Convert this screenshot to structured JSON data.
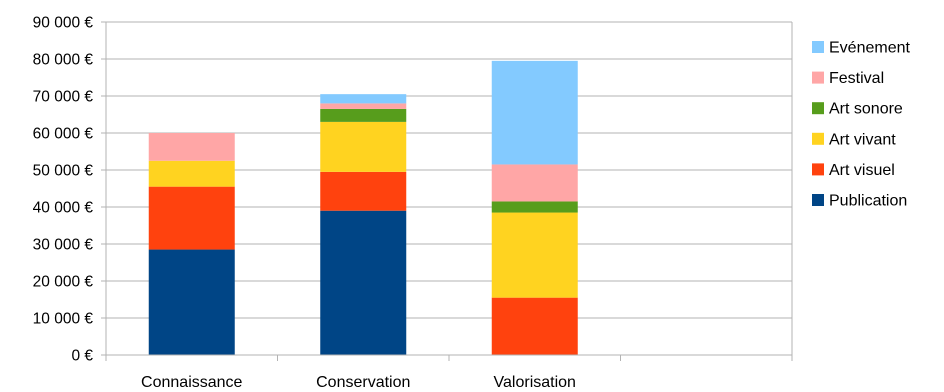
{
  "chart_data": {
    "type": "bar",
    "stacked": true,
    "title": "",
    "xlabel": "",
    "ylabel": "",
    "ylim": [
      0,
      90000
    ],
    "yticks": [
      "0 €",
      "10 000 €",
      "20 000 €",
      "30 000 €",
      "40 000 €",
      "50 000 €",
      "60 000 €",
      "70 000 €",
      "80 000 €",
      "90 000 €"
    ],
    "grid": true,
    "legend_position": "right",
    "categories": [
      "Connaissance",
      "Conservation",
      "Valorisation",
      ""
    ],
    "series": [
      {
        "name": "Publication",
        "color": "#004586",
        "values": [
          28500,
          39000,
          0,
          0
        ]
      },
      {
        "name": "Art visuel",
        "color": "#ff420e",
        "values": [
          17000,
          10500,
          15500,
          0
        ]
      },
      {
        "name": "Art vivant",
        "color": "#ffd320",
        "values": [
          7000,
          13500,
          23000,
          0
        ]
      },
      {
        "name": "Art sonore",
        "color": "#579d1c",
        "values": [
          0,
          3500,
          3000,
          0
        ]
      },
      {
        "name": "Festival",
        "color": "#ffa6a6",
        "values": [
          7500,
          1500,
          10000,
          0
        ]
      },
      {
        "name": "Evénement",
        "color": "#83caff",
        "values": [
          0,
          2500,
          28000,
          0
        ]
      }
    ],
    "legend_order": [
      "Evénement",
      "Festival",
      "Art sonore",
      "Art vivant",
      "Art visuel",
      "Publication"
    ]
  }
}
